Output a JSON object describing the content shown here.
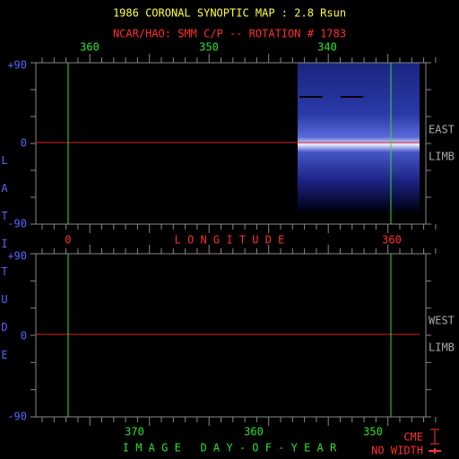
{
  "title": "1986 CORONAL SYNOPTIC MAP : 2.8 Rsun",
  "subtitle": "NCAR/HAO: SMM C/P -- ROTATION # 1783",
  "top_axis": {
    "labels": [
      "360",
      "350",
      "340"
    ]
  },
  "upper_panel": {
    "y_labels": [
      "+90",
      "0",
      "-90"
    ],
    "right_labels": [
      "EAST",
      "LIMB"
    ]
  },
  "longitude_axis": {
    "start": "0",
    "title": "L O N G I T U D E",
    "end": "360"
  },
  "lower_panel": {
    "y_labels": [
      "+90",
      "0",
      "-90"
    ],
    "right_labels": [
      "WEST",
      "LIMB"
    ]
  },
  "y_axis_title": "LATITUDE",
  "bottom_axis": {
    "labels": [
      "370",
      "360",
      "350"
    ],
    "title": "I M A G E   D A Y - O F - Y E A R"
  },
  "legend": {
    "cme": "CME",
    "no_width": "NO WIDTH"
  }
}
